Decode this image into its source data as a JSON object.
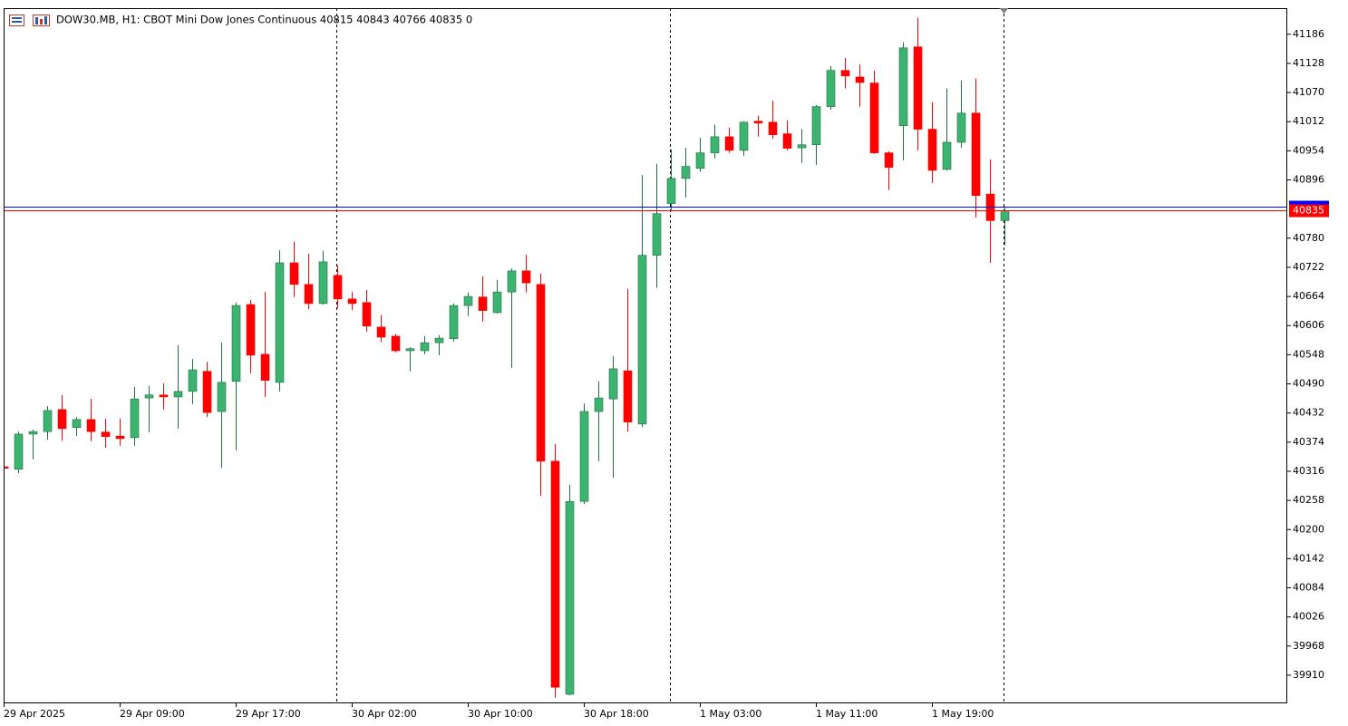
{
  "chart_data": {
    "type": "candlestick",
    "title": "DOW30.MB, H1:  CBOT Mini Dow Jones Continuous  40815 40843 40766 40835  0",
    "categories": [
      "29 Apr 2025",
      null,
      null,
      null,
      null,
      null,
      null,
      null,
      "29 Apr 09:00",
      null,
      null,
      null,
      null,
      null,
      null,
      null,
      "29 Apr 17:00",
      null,
      null,
      null,
      null,
      null,
      null,
      null,
      "30 Apr 02:00",
      null,
      null,
      null,
      null,
      null,
      null,
      null,
      "30 Apr 10:00",
      null,
      null,
      null,
      null,
      null,
      null,
      null,
      "30 Apr 18:00",
      null,
      null,
      null,
      null,
      null,
      null,
      null,
      "1 May 03:00",
      null,
      null,
      null,
      null,
      null,
      null,
      null,
      "1 May 11:00",
      null,
      null,
      null,
      null,
      null,
      null,
      null,
      "1 May 19:00",
      null,
      null,
      null,
      null,
      null
    ],
    "open": [
      40325,
      40320,
      40390,
      40395,
      40439,
      40403,
      40419,
      40394,
      40386,
      40383,
      40462,
      40468,
      40464,
      40475,
      40515,
      40435,
      40495,
      40648,
      40549,
      40493,
      40731,
      40688,
      40650,
      40706,
      40659,
      40652,
      40603,
      40585,
      40556,
      40556,
      40572,
      40580,
      40646,
      40663,
      40632,
      40673,
      40715,
      40688,
      40336,
      39872,
      40256,
      40435,
      40460,
      40516,
      40410,
      40746,
      40849,
      40899,
      40919,
      40950,
      40982,
      40955,
      41013,
      41011,
      40988,
      40960,
      40966,
      41042,
      41114,
      41101,
      41089,
      40950,
      41004,
      41161,
      40997,
      40917,
      40971,
      41029,
      40868,
      40815
    ],
    "high": [
      40327,
      40395,
      40399,
      40446,
      40468,
      40424,
      40460,
      40421,
      40421,
      40484,
      40486,
      40491,
      40567,
      40540,
      40534,
      40572,
      40652,
      40657,
      40673,
      40756,
      40773,
      40749,
      40755,
      40726,
      40673,
      40677,
      40627,
      40589,
      40563,
      40585,
      40587,
      40650,
      40672,
      40704,
      40697,
      40720,
      40747,
      40710,
      40370,
      40289,
      40451,
      40495,
      40545,
      40679,
      40906,
      40928,
      40957,
      40960,
      40980,
      41006,
      41000,
      41013,
      41024,
      41054,
      41015,
      40997,
      41045,
      41123,
      41139,
      41126,
      41114,
      40953,
      41170,
      41219,
      41051,
      41078,
      41094,
      41098,
      40937,
      40843
    ],
    "low": [
      40320,
      40312,
      40340,
      40379,
      40377,
      40386,
      40376,
      40363,
      40367,
      40367,
      40394,
      40439,
      40401,
      40450,
      40424,
      40323,
      40358,
      40511,
      40464,
      40475,
      40663,
      40639,
      40648,
      40641,
      40637,
      40594,
      40574,
      40553,
      40515,
      40549,
      40547,
      40574,
      40625,
      40614,
      40630,
      40522,
      40672,
      40267,
      39865,
      39870,
      40251,
      40336,
      40303,
      40395,
      40404,
      40681,
      40836,
      40861,
      40912,
      40939,
      40950,
      40944,
      40982,
      40978,
      40955,
      40930,
      40926,
      41036,
      41078,
      41042,
      40948,
      40876,
      40935,
      40955,
      40890,
      40915,
      40960,
      40821,
      40731,
      40766
    ],
    "close": [
      40322,
      40390,
      40395,
      40437,
      40401,
      40419,
      40395,
      40385,
      40381,
      40460,
      40468,
      40464,
      40475,
      40518,
      40433,
      40493,
      40646,
      40547,
      40497,
      40731,
      40688,
      40650,
      40733,
      40659,
      40650,
      40605,
      40583,
      40556,
      40560,
      40572,
      40581,
      40646,
      40664,
      40636,
      40673,
      40715,
      40691,
      40336,
      39886,
      40256,
      40435,
      40462,
      40520,
      40414,
      40746,
      40829,
      40899,
      40923,
      40950,
      40982,
      40955,
      41011,
      41009,
      40986,
      40959,
      40966,
      41042,
      41114,
      41103,
      41090,
      40950,
      40921,
      41159,
      40997,
      40915,
      40971,
      41029,
      40865,
      40815,
      40835
    ],
    "up_color": "#3cb371",
    "down_color": "#ff0000",
    "ylim": [
      39854,
      41238
    ],
    "yticks": [
      41186,
      41128,
      41070,
      41012,
      40954,
      40896,
      40780,
      40722,
      40664,
      40606,
      40548,
      40490,
      40432,
      40374,
      40316,
      40258,
      40200,
      40142,
      40084,
      40026,
      39968,
      39910
    ],
    "grid": false,
    "separators": [
      23,
      46,
      69
    ],
    "price_lines": [
      {
        "value": 40843,
        "color": "#0000ff"
      },
      {
        "value": 40835,
        "color": "#ff0000",
        "label": "40835"
      }
    ]
  }
}
